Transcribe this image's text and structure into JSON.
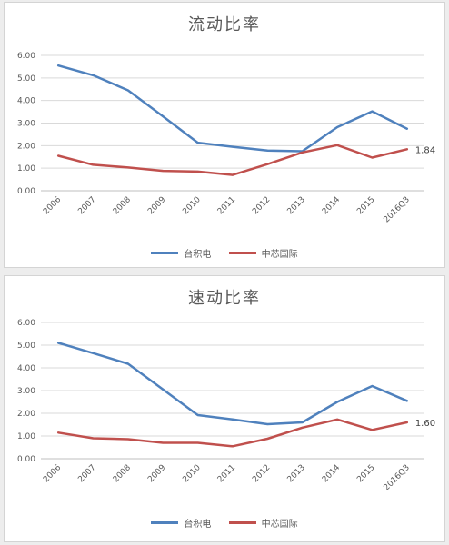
{
  "chart_data": [
    {
      "type": "line",
      "title": "流动比率",
      "xlabel": "",
      "ylabel": "",
      "categories": [
        "2006",
        "2007",
        "2008",
        "2009",
        "2010",
        "2011",
        "2012",
        "2013",
        "2014",
        "2015",
        "2016Q3"
      ],
      "y_ticks": [
        "0.00",
        "1.00",
        "2.00",
        "3.00",
        "4.00",
        "5.00",
        "6.00"
      ],
      "ylim": [
        0,
        6
      ],
      "grid": true,
      "legend_position": "bottom",
      "series": [
        {
          "name": "台积电",
          "color": "#4f81bd",
          "values": [
            5.55,
            5.12,
            4.45,
            3.3,
            2.13,
            1.95,
            1.78,
            1.75,
            2.82,
            3.52,
            2.75
          ]
        },
        {
          "name": "中芯国际",
          "color": "#c0504d",
          "values": [
            1.55,
            1.15,
            1.03,
            0.88,
            0.85,
            0.7,
            1.18,
            1.7,
            2.02,
            1.47,
            1.84
          ]
        }
      ],
      "annotation": {
        "series": 1,
        "index": 10,
        "text": "1.84"
      }
    },
    {
      "type": "line",
      "title": "速动比率",
      "xlabel": "",
      "ylabel": "",
      "categories": [
        "2006",
        "2007",
        "2008",
        "2009",
        "2010",
        "2011",
        "2012",
        "2013",
        "2014",
        "2015",
        "2016Q3"
      ],
      "y_ticks": [
        "0.00",
        "1.00",
        "2.00",
        "3.00",
        "4.00",
        "5.00",
        "6.00"
      ],
      "ylim": [
        0,
        6
      ],
      "grid": true,
      "legend_position": "bottom",
      "series": [
        {
          "name": "台积电",
          "color": "#4f81bd",
          "values": [
            5.1,
            4.65,
            4.18,
            3.05,
            1.92,
            1.73,
            1.52,
            1.6,
            2.5,
            3.2,
            2.55
          ]
        },
        {
          "name": "中芯国际",
          "color": "#c0504d",
          "values": [
            1.15,
            0.9,
            0.86,
            0.7,
            0.7,
            0.55,
            0.88,
            1.37,
            1.73,
            1.27,
            1.6
          ]
        }
      ],
      "annotation": {
        "series": 1,
        "index": 10,
        "text": "1.60"
      }
    }
  ]
}
